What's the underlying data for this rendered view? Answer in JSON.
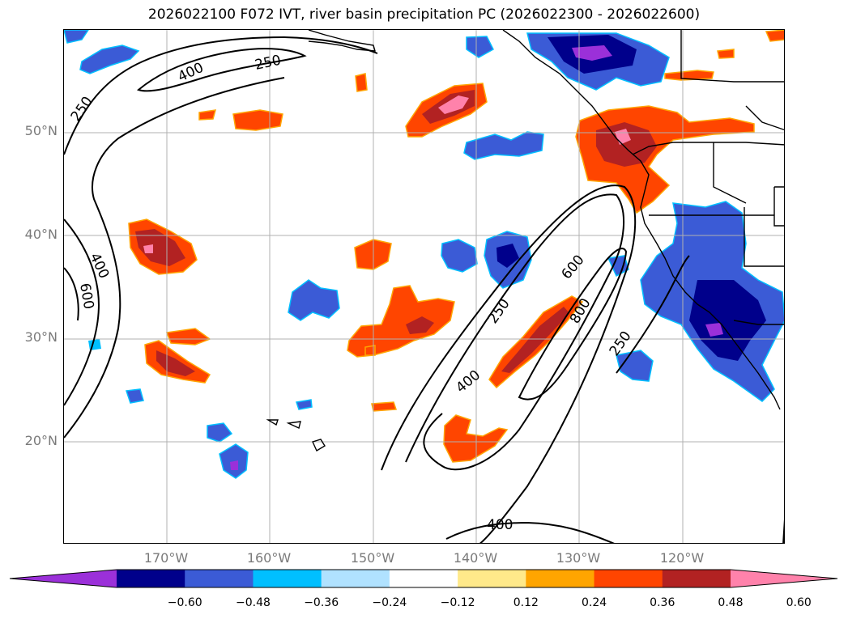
{
  "title": "2026022100 F072 IVT, river basin precipitation PC (2026022300 - 2026022600)",
  "map": {
    "lat_labels": [
      "50°N",
      "40°N",
      "30°N",
      "20°N"
    ],
    "lon_labels": [
      "170°W",
      "160°W",
      "150°W",
      "140°W",
      "130°W",
      "120°W"
    ],
    "contour_labels": [
      "250",
      "400",
      "250",
      "400",
      "600",
      "600",
      "250",
      "400",
      "800",
      "250",
      "400"
    ]
  },
  "colorbar": {
    "tick_labels": [
      "−0.60",
      "−0.48",
      "−0.36",
      "−0.24",
      "−0.12",
      "0.12",
      "0.24",
      "0.36",
      "0.48",
      "0.60"
    ],
    "colors": [
      "#9b30d9",
      "#00008b",
      "#3b5bd6",
      "#00bfff",
      "#b0e2ff",
      "#ffffff",
      "#ffe98a",
      "#ffa500",
      "#ff4500",
      "#b22222",
      "#ff82ab"
    ]
  }
}
